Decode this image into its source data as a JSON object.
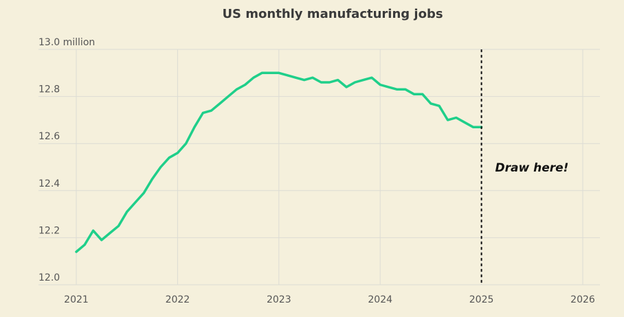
{
  "colors": {
    "background": "#f5f0dc",
    "line": "#1fcf8a",
    "grid": "#dcdcd4",
    "text": "#3a3a3a"
  },
  "chart_data": {
    "type": "line",
    "title": "US monthly manufacturing jobs",
    "xlabel": "",
    "ylabel": "",
    "y_top_label": "13.0 million",
    "xlim": [
      2021,
      2026.1
    ],
    "ylim": [
      12.0,
      13.0
    ],
    "x_ticks": [
      "2021",
      "2022",
      "2023",
      "2024",
      "2025",
      "2026"
    ],
    "y_ticks": [
      "12.0",
      "12.2",
      "12.4",
      "12.6",
      "12.8",
      "13.0 million"
    ],
    "grid": true,
    "annotation": "Draw here!",
    "marker_x": 2025,
    "series": [
      {
        "x": [
          2021.0,
          2021.083,
          2021.167,
          2021.25,
          2021.333,
          2021.417,
          2021.5,
          2021.583,
          2021.667,
          2021.75,
          2021.833,
          2021.917,
          2022.0,
          2022.083,
          2022.167,
          2022.25,
          2022.333,
          2022.417,
          2022.5,
          2022.583,
          2022.667,
          2022.75,
          2022.833,
          2022.917,
          2023.0,
          2023.083,
          2023.167,
          2023.25,
          2023.333,
          2023.417,
          2023.5,
          2023.583,
          2023.667,
          2023.75,
          2023.833,
          2023.917,
          2024.0,
          2024.083,
          2024.167,
          2024.25,
          2024.333,
          2024.417,
          2024.5,
          2024.583,
          2024.667,
          2024.75,
          2024.833,
          2024.917,
          2025.0
        ],
        "values": [
          12.14,
          12.17,
          12.23,
          12.19,
          12.22,
          12.25,
          12.31,
          12.35,
          12.39,
          12.45,
          12.5,
          12.54,
          12.56,
          12.6,
          12.67,
          12.73,
          12.74,
          12.77,
          12.8,
          12.83,
          12.85,
          12.88,
          12.9,
          12.9,
          12.9,
          12.89,
          12.88,
          12.87,
          12.88,
          12.86,
          12.86,
          12.87,
          12.84,
          12.86,
          12.87,
          12.88,
          12.85,
          12.84,
          12.83,
          12.83,
          12.81,
          12.81,
          12.77,
          12.76,
          12.7,
          12.71,
          12.69,
          12.67,
          12.67
        ]
      }
    ]
  }
}
